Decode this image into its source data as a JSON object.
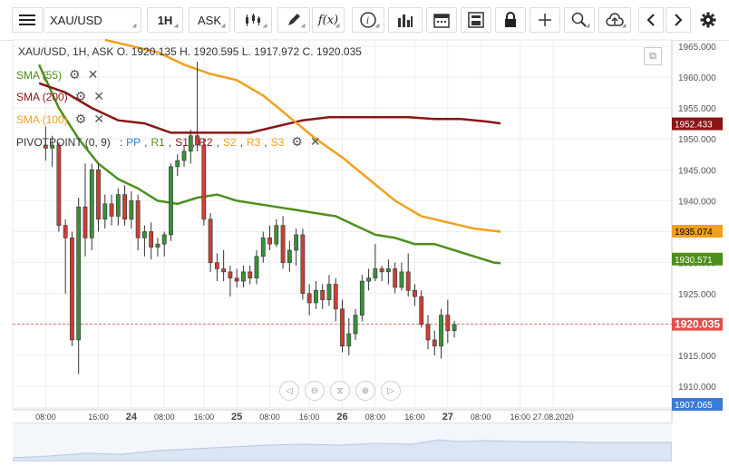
{
  "toolbar": {
    "menu_icon": "menu-icon",
    "symbol": "XAU/USD",
    "timeframe": "1H",
    "price_type": "ASK",
    "icons": [
      "candle-type-icon",
      "draw-pencil-icon",
      "function-icon",
      "info-icon",
      "bar-chart-icon",
      "calendar-icon",
      "save-icon",
      "lock-icon",
      "crosshair-icon",
      "zoom-icon",
      "upload-icon",
      "back-icon",
      "forward-icon",
      "settings-icon"
    ]
  },
  "ohlc": "XAU/USD, 1H, ASK   O. 1920.135 H. 1920.595 L. 1917.972 C. 1920.035",
  "indicators": [
    {
      "label": "SMA (55)",
      "color": "#4e8f1c"
    },
    {
      "label": "SMA (200)",
      "color": "#8b1414"
    },
    {
      "label": "SMA (100)",
      "color": "#f0a01e"
    }
  ],
  "pivot": {
    "name": "PIVOTPOINT (0, 9)",
    "sep": ":",
    "items": [
      {
        "label": "PP",
        "color": "#2f7fe0"
      },
      {
        "label": "R1",
        "color": "#4e8f1c"
      },
      {
        "label": "S1",
        "color": "#8b1414"
      },
      {
        "label": "R2",
        "color": "#8b1414"
      },
      {
        "label": "S2",
        "color": "#f0a01e"
      },
      {
        "label": "R3",
        "color": "#f0a01e"
      },
      {
        "label": "S3",
        "color": "#f0a01e"
      }
    ]
  },
  "chart_data": {
    "type": "candlestick",
    "ylim": [
      1906.5,
      1966
    ],
    "xlim": [
      -5,
      95
    ],
    "y_ticks": [
      "1965.000",
      "1960.000",
      "1955.000",
      "1950.000",
      "1945.000",
      "1940.000",
      "1935.000",
      "1930.000",
      "1925.000",
      "1920.000",
      "1915.000",
      "1910.000"
    ],
    "x_ticks": [
      {
        "label": "08:00",
        "x": 0
      },
      {
        "label": "16:00",
        "x": 8
      },
      {
        "label": "24",
        "x": 13
      },
      {
        "label": "08:00",
        "x": 18
      },
      {
        "label": "16:00",
        "x": 24
      },
      {
        "label": "25",
        "x": 29
      },
      {
        "label": "08:00",
        "x": 34
      },
      {
        "label": "16:00",
        "x": 40
      },
      {
        "label": "26",
        "x": 45
      },
      {
        "label": "08:00",
        "x": 50
      },
      {
        "label": "16:00",
        "x": 56
      },
      {
        "label": "27",
        "x": 61
      },
      {
        "label": "08:00",
        "x": 66
      },
      {
        "label": "16:00",
        "x": 72
      },
      {
        "label": "27.08.2020",
        "x": 77
      }
    ],
    "candles": [
      {
        "o": 1949.0,
        "h": 1952.0,
        "l": 1946.5,
        "c": 1948.5
      },
      {
        "o": 1948.5,
        "h": 1950.5,
        "l": 1945.5,
        "c": 1949.0
      },
      {
        "o": 1949.0,
        "h": 1949.5,
        "l": 1935.0,
        "c": 1936.0
      },
      {
        "o": 1936.0,
        "h": 1937.0,
        "l": 1925.0,
        "c": 1934.0
      },
      {
        "o": 1934.0,
        "h": 1935.0,
        "l": 1916.5,
        "c": 1917.5
      },
      {
        "o": 1917.5,
        "h": 1940.5,
        "l": 1912.0,
        "c": 1939.0
      },
      {
        "o": 1939.0,
        "h": 1946.0,
        "l": 1931.0,
        "c": 1934.0
      },
      {
        "o": 1934.0,
        "h": 1946.0,
        "l": 1932.0,
        "c": 1945.0
      },
      {
        "o": 1945.0,
        "h": 1946.0,
        "l": 1935.0,
        "c": 1937.0
      },
      {
        "o": 1937.0,
        "h": 1941.0,
        "l": 1935.5,
        "c": 1939.5
      },
      {
        "o": 1939.5,
        "h": 1941.0,
        "l": 1936.0,
        "c": 1937.5
      },
      {
        "o": 1937.5,
        "h": 1942.0,
        "l": 1936.0,
        "c": 1941.0
      },
      {
        "o": 1941.0,
        "h": 1942.5,
        "l": 1936.0,
        "c": 1937.0
      },
      {
        "o": 1937.0,
        "h": 1941.5,
        "l": 1935.5,
        "c": 1940.0
      },
      {
        "o": 1940.0,
        "h": 1941.0,
        "l": 1932.0,
        "c": 1934.0
      },
      {
        "o": 1934.0,
        "h": 1936.0,
        "l": 1931.0,
        "c": 1935.0
      },
      {
        "o": 1935.0,
        "h": 1936.5,
        "l": 1930.5,
        "c": 1932.5
      },
      {
        "o": 1932.5,
        "h": 1934.0,
        "l": 1931.0,
        "c": 1933.0
      },
      {
        "o": 1933.0,
        "h": 1935.0,
        "l": 1931.0,
        "c": 1934.5
      },
      {
        "o": 1934.5,
        "h": 1946.0,
        "l": 1933.5,
        "c": 1945.5
      },
      {
        "o": 1945.5,
        "h": 1947.5,
        "l": 1944.0,
        "c": 1946.5
      },
      {
        "o": 1946.5,
        "h": 1949.0,
        "l": 1945.5,
        "c": 1948.0
      },
      {
        "o": 1948.0,
        "h": 1951.5,
        "l": 1946.0,
        "c": 1950.5
      },
      {
        "o": 1950.5,
        "h": 1962.5,
        "l": 1948.0,
        "c": 1949.0
      },
      {
        "o": 1949.0,
        "h": 1950.0,
        "l": 1936.0,
        "c": 1937.0
      },
      {
        "o": 1937.0,
        "h": 1938.0,
        "l": 1928.5,
        "c": 1930.0
      },
      {
        "o": 1930.0,
        "h": 1931.5,
        "l": 1927.0,
        "c": 1929.0
      },
      {
        "o": 1929.0,
        "h": 1932.0,
        "l": 1927.0,
        "c": 1928.5
      },
      {
        "o": 1928.5,
        "h": 1929.5,
        "l": 1924.5,
        "c": 1927.5
      },
      {
        "o": 1927.5,
        "h": 1929.0,
        "l": 1926.0,
        "c": 1927.0
      },
      {
        "o": 1927.0,
        "h": 1929.5,
        "l": 1926.0,
        "c": 1928.5
      },
      {
        "o": 1928.5,
        "h": 1929.5,
        "l": 1926.5,
        "c": 1927.5
      },
      {
        "o": 1927.5,
        "h": 1932.0,
        "l": 1926.5,
        "c": 1931.0
      },
      {
        "o": 1931.0,
        "h": 1935.0,
        "l": 1930.0,
        "c": 1934.0
      },
      {
        "o": 1934.0,
        "h": 1936.0,
        "l": 1932.0,
        "c": 1933.0
      },
      {
        "o": 1933.0,
        "h": 1937.0,
        "l": 1932.5,
        "c": 1936.0
      },
      {
        "o": 1936.0,
        "h": 1937.5,
        "l": 1929.0,
        "c": 1930.0
      },
      {
        "o": 1930.0,
        "h": 1933.5,
        "l": 1928.5,
        "c": 1932.0
      },
      {
        "o": 1932.0,
        "h": 1935.5,
        "l": 1929.5,
        "c": 1934.5
      },
      {
        "o": 1934.5,
        "h": 1935.5,
        "l": 1924.0,
        "c": 1925.0
      },
      {
        "o": 1925.0,
        "h": 1926.5,
        "l": 1921.5,
        "c": 1923.5
      },
      {
        "o": 1923.5,
        "h": 1927.0,
        "l": 1922.5,
        "c": 1925.5
      },
      {
        "o": 1925.5,
        "h": 1926.5,
        "l": 1922.5,
        "c": 1924.0
      },
      {
        "o": 1924.0,
        "h": 1928.0,
        "l": 1923.0,
        "c": 1926.5
      },
      {
        "o": 1926.5,
        "h": 1927.5,
        "l": 1920.5,
        "c": 1922.5
      },
      {
        "o": 1922.5,
        "h": 1924.0,
        "l": 1915.5,
        "c": 1916.5
      },
      {
        "o": 1916.5,
        "h": 1921.0,
        "l": 1915.0,
        "c": 1918.5
      },
      {
        "o": 1918.5,
        "h": 1922.5,
        "l": 1917.5,
        "c": 1921.5
      },
      {
        "o": 1921.5,
        "h": 1928.0,
        "l": 1920.5,
        "c": 1927.0
      },
      {
        "o": 1927.0,
        "h": 1929.0,
        "l": 1925.5,
        "c": 1927.5
      },
      {
        "o": 1927.5,
        "h": 1933.0,
        "l": 1927.0,
        "c": 1929.0
      },
      {
        "o": 1929.0,
        "h": 1929.5,
        "l": 1927.0,
        "c": 1928.5
      },
      {
        "o": 1928.5,
        "h": 1930.5,
        "l": 1926.5,
        "c": 1929.0
      },
      {
        "o": 1929.0,
        "h": 1930.0,
        "l": 1925.0,
        "c": 1926.0
      },
      {
        "o": 1926.0,
        "h": 1930.0,
        "l": 1925.5,
        "c": 1928.5
      },
      {
        "o": 1928.5,
        "h": 1931.5,
        "l": 1924.5,
        "c": 1925.5
      },
      {
        "o": 1925.5,
        "h": 1926.5,
        "l": 1923.0,
        "c": 1924.5
      },
      {
        "o": 1924.5,
        "h": 1925.5,
        "l": 1919.5,
        "c": 1920.0
      },
      {
        "o": 1920.0,
        "h": 1921.5,
        "l": 1916.0,
        "c": 1917.5
      },
      {
        "o": 1917.5,
        "h": 1919.0,
        "l": 1915.0,
        "c": 1916.5
      },
      {
        "o": 1916.5,
        "h": 1922.5,
        "l": 1914.5,
        "c": 1921.5
      },
      {
        "o": 1921.5,
        "h": 1924.0,
        "l": 1917.0,
        "c": 1919.0
      },
      {
        "o": 1919.0,
        "h": 1920.6,
        "l": 1917.9,
        "c": 1920.0
      }
    ],
    "series": [
      {
        "name": "SMA (55)",
        "color": "#4e8f1c",
        "points": [
          [
            -1,
            1962.0
          ],
          [
            2,
            1955.0
          ],
          [
            5,
            1950.0
          ],
          [
            8,
            1946.0
          ],
          [
            11,
            1943.5
          ],
          [
            14,
            1942.0
          ],
          [
            17,
            1940.0
          ],
          [
            20,
            1939.5
          ],
          [
            23,
            1940.5
          ],
          [
            26,
            1941.0
          ],
          [
            29,
            1940.0
          ],
          [
            32,
            1939.5
          ],
          [
            35,
            1939.0
          ],
          [
            38,
            1938.5
          ],
          [
            41,
            1938.0
          ],
          [
            44,
            1937.5
          ],
          [
            47,
            1936.0
          ],
          [
            50,
            1934.5
          ],
          [
            53,
            1934.0
          ],
          [
            56,
            1933.0
          ],
          [
            59,
            1933.0
          ],
          [
            62,
            1932.0
          ],
          [
            65,
            1931.0
          ],
          [
            68,
            1930.0
          ],
          [
            69,
            1929.9
          ]
        ]
      },
      {
        "name": "SMA (200)",
        "color": "#8b1414",
        "points": [
          [
            -1,
            1959.0
          ],
          [
            3,
            1957.5
          ],
          [
            7,
            1955.0
          ],
          [
            11,
            1953.0
          ],
          [
            15,
            1952.5
          ],
          [
            19,
            1951.0
          ],
          [
            23,
            1951.0
          ],
          [
            27,
            1951.0
          ],
          [
            31,
            1951.0
          ],
          [
            35,
            1952.0
          ],
          [
            39,
            1953.0
          ],
          [
            43,
            1953.5
          ],
          [
            47,
            1953.5
          ],
          [
            51,
            1953.5
          ],
          [
            55,
            1953.5
          ],
          [
            59,
            1953.2
          ],
          [
            63,
            1953.2
          ],
          [
            67,
            1952.8
          ],
          [
            69,
            1952.5
          ]
        ]
      },
      {
        "name": "SMA (100)",
        "color": "#f0a01e",
        "points": [
          [
            9,
            1966.0
          ],
          [
            13,
            1965.0
          ],
          [
            17,
            1964.0
          ],
          [
            21,
            1962.0
          ],
          [
            25,
            1960.5
          ],
          [
            29,
            1959.5
          ],
          [
            33,
            1957.0
          ],
          [
            37,
            1953.5
          ],
          [
            41,
            1950.0
          ],
          [
            45,
            1947.0
          ],
          [
            49,
            1943.5
          ],
          [
            53,
            1940.0
          ],
          [
            57,
            1937.5
          ],
          [
            61,
            1936.5
          ],
          [
            65,
            1935.5
          ],
          [
            69,
            1935.0
          ]
        ]
      }
    ],
    "markers": [
      {
        "label": "1952.433",
        "value": 1952.433,
        "bg": "#8b1414",
        "fg": "#ffffff"
      },
      {
        "label": "1935.074",
        "value": 1935.074,
        "bg": "#f0a01e",
        "fg": "#000000"
      },
      {
        "label": "1930.571",
        "value": 1930.571,
        "bg": "#4e8f1c",
        "fg": "#ffffff"
      },
      {
        "label": "1920.035",
        "value": 1920.035,
        "bg": "#e05050",
        "fg": "#ffffff"
      },
      {
        "label": "1907.065",
        "value": 1907.065,
        "bg": "#3a7bd5",
        "fg": "#ffffff"
      }
    ],
    "price_line": 1920.035,
    "colors": {
      "up": "#3a8f3a",
      "down": "#c84036"
    }
  }
}
